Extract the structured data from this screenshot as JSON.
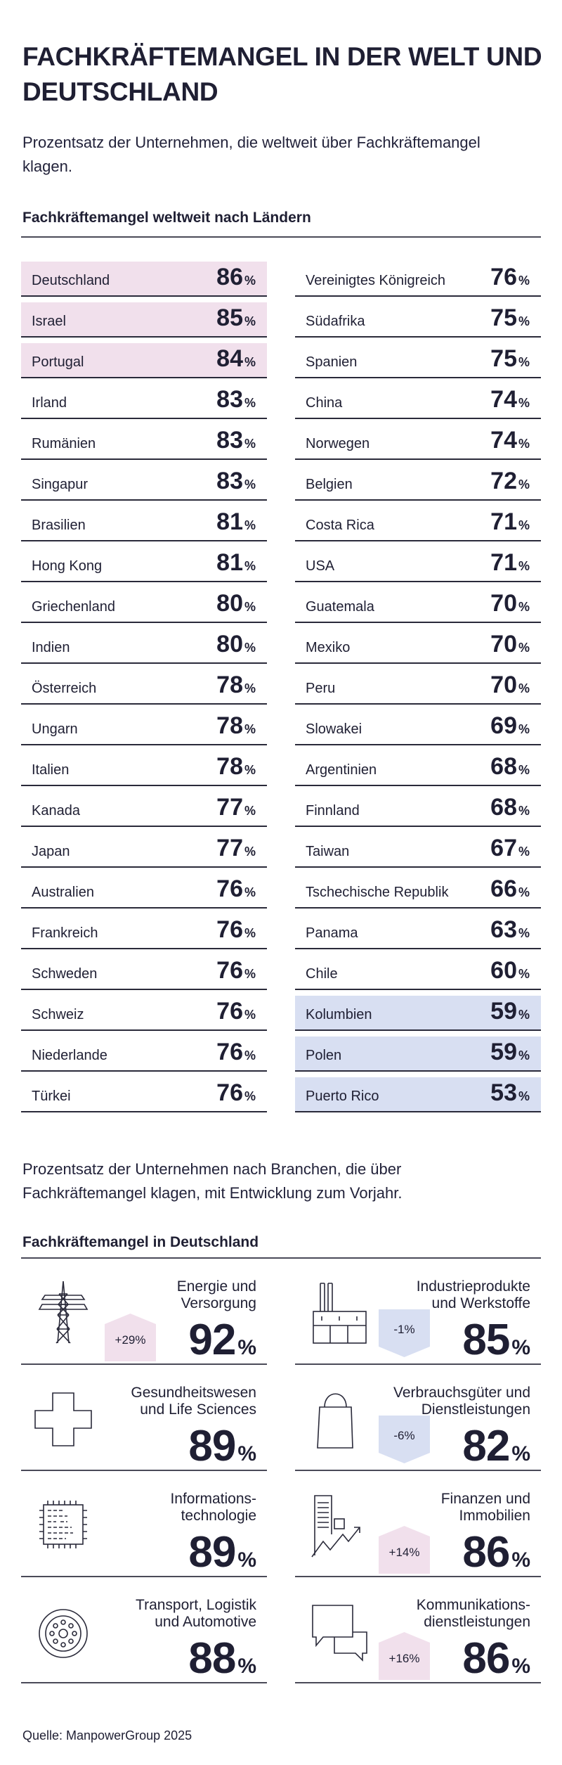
{
  "title": "FACHKRÄFTEMANGEL IN DER WELT UND DEUTSCHLAND",
  "subtitle_world": "Prozentsatz der Unternehmen, die weltweit über Fachkräftemangel klagen.",
  "heading_world": "Fachkräftemangel weltweit nach Ländern",
  "percent_sign": "%",
  "colors": {
    "text": "#1f1f33",
    "highlight_top": "#f1e0ec",
    "highlight_bottom": "#d8dff2"
  },
  "countries_left": [
    {
      "name": "Deutschland",
      "value": "86",
      "highlight": "pink"
    },
    {
      "name": "Israel",
      "value": "85",
      "highlight": "pink"
    },
    {
      "name": "Portugal",
      "value": "84",
      "highlight": "pink"
    },
    {
      "name": "Irland",
      "value": "83"
    },
    {
      "name": "Rumänien",
      "value": "83"
    },
    {
      "name": "Singapur",
      "value": "83"
    },
    {
      "name": "Brasilien",
      "value": "81"
    },
    {
      "name": "Hong Kong",
      "value": "81"
    },
    {
      "name": "Griechenland",
      "value": "80"
    },
    {
      "name": "Indien",
      "value": "80"
    },
    {
      "name": "Österreich",
      "value": "78"
    },
    {
      "name": "Ungarn",
      "value": "78"
    },
    {
      "name": "Italien",
      "value": "78"
    },
    {
      "name": "Kanada",
      "value": "77"
    },
    {
      "name": "Japan",
      "value": "77"
    },
    {
      "name": "Australien",
      "value": "76"
    },
    {
      "name": "Frankreich",
      "value": "76"
    },
    {
      "name": "Schweden",
      "value": "76"
    },
    {
      "name": "Schweiz",
      "value": "76"
    },
    {
      "name": "Niederlande",
      "value": "76"
    },
    {
      "name": "Türkei",
      "value": "76"
    }
  ],
  "countries_right": [
    {
      "name": "Vereinigtes Königreich",
      "value": "76"
    },
    {
      "name": "Südafrika",
      "value": "75"
    },
    {
      "name": "Spanien",
      "value": "75"
    },
    {
      "name": "China",
      "value": "74"
    },
    {
      "name": "Norwegen",
      "value": "74"
    },
    {
      "name": "Belgien",
      "value": "72"
    },
    {
      "name": "Costa Rica",
      "value": "71"
    },
    {
      "name": "USA",
      "value": "71"
    },
    {
      "name": "Guatemala",
      "value": "70"
    },
    {
      "name": "Mexiko",
      "value": "70"
    },
    {
      "name": "Peru",
      "value": "70"
    },
    {
      "name": "Slowakei",
      "value": "69"
    },
    {
      "name": "Argentinien",
      "value": "68"
    },
    {
      "name": "Finnland",
      "value": "68"
    },
    {
      "name": "Taiwan",
      "value": "67"
    },
    {
      "name": "Tschechische Republik",
      "value": "66"
    },
    {
      "name": "Panama",
      "value": "63"
    },
    {
      "name": "Chile",
      "value": "60"
    },
    {
      "name": "Kolumbien",
      "value": "59",
      "highlight": "blue"
    },
    {
      "name": "Polen",
      "value": "59",
      "highlight": "blue"
    },
    {
      "name": "Puerto Rico",
      "value": "53",
      "highlight": "blue"
    }
  ],
  "subtitle_germany": "Prozentsatz der Unternehmen nach Branchen, die über Fachkräftemangel klagen, mit Entwicklung zum Vorjahr.",
  "heading_germany": "Fachkräftemangel in Deutschland",
  "sectors": [
    {
      "label": "Energie und\nVersorgung",
      "value": "92",
      "change": "+29%",
      "direction": "up",
      "icon": "power-pylon-icon"
    },
    {
      "label": "Industrieprodukte\nund Werkstoffe",
      "value": "85",
      "change": "-1%",
      "direction": "down",
      "icon": "factory-icon"
    },
    {
      "label": "Gesundheitswesen\nund Life Sciences",
      "value": "89",
      "icon": "medical-cross-icon"
    },
    {
      "label": "Verbrauchsgüter und\nDienstleistungen",
      "value": "82",
      "change": "-6%",
      "direction": "down",
      "icon": "shopping-bag-icon"
    },
    {
      "label": "Informations-\ntechnologie",
      "value": "89",
      "icon": "microchip-icon"
    },
    {
      "label": "Finanzen und\nImmobilien",
      "value": "86",
      "change": "+14%",
      "direction": "up",
      "icon": "buildings-growth-icon"
    },
    {
      "label": "Transport, Logistik\nund Automotive",
      "value": "88",
      "icon": "wheel-icon"
    },
    {
      "label": "Kommunikations-\ndienstleistungen",
      "value": "86",
      "change": "+16%",
      "direction": "up",
      "icon": "speech-bubbles-icon"
    }
  ],
  "source": "Quelle: ManpowerGroup 2025"
}
